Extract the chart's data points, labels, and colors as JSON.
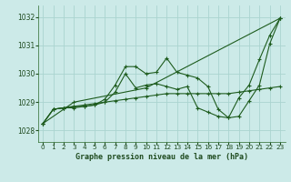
{
  "xlabel": "Graphe pression niveau de la mer (hPa)",
  "background_color": "#cceae8",
  "grid_color": "#aad4d0",
  "line_color": "#1e5c1e",
  "xlim": [
    -0.5,
    23.5
  ],
  "ylim": [
    1027.6,
    1032.4
  ],
  "yticks": [
    1028,
    1029,
    1030,
    1031,
    1032
  ],
  "xticks": [
    0,
    1,
    2,
    3,
    4,
    5,
    6,
    7,
    8,
    9,
    10,
    11,
    12,
    13,
    14,
    15,
    16,
    17,
    18,
    19,
    20,
    21,
    22,
    23
  ],
  "series": [
    {
      "x": [
        0,
        1,
        2,
        3,
        4,
        5,
        6,
        7,
        8,
        9,
        10,
        11,
        12,
        13,
        14,
        15,
        16,
        17,
        18,
        19,
        20,
        21,
        22,
        23
      ],
      "y": [
        1028.25,
        1028.75,
        1028.8,
        1028.8,
        1028.85,
        1028.9,
        1029.1,
        1029.6,
        1030.25,
        1030.25,
        1030.0,
        1030.05,
        1030.55,
        1030.05,
        1029.95,
        1029.85,
        1029.55,
        1028.75,
        1028.45,
        1029.15,
        1029.6,
        1030.5,
        1031.35,
        1031.95
      ]
    },
    {
      "x": [
        0,
        3,
        10,
        23
      ],
      "y": [
        1028.25,
        1029.0,
        1029.5,
        1031.95
      ]
    },
    {
      "x": [
        0,
        1,
        2,
        3,
        4,
        5,
        6,
        7,
        8,
        9,
        10,
        11,
        12,
        13,
        14,
        15,
        16,
        17,
        18,
        19,
        20,
        21,
        22,
        23
      ],
      "y": [
        1028.25,
        1028.75,
        1028.8,
        1028.85,
        1028.9,
        1028.95,
        1029.0,
        1029.05,
        1029.1,
        1029.15,
        1029.2,
        1029.25,
        1029.3,
        1029.3,
        1029.3,
        1029.3,
        1029.3,
        1029.3,
        1029.3,
        1029.35,
        1029.4,
        1029.45,
        1029.5,
        1029.55
      ]
    },
    {
      "x": [
        0,
        1,
        2,
        3,
        4,
        5,
        6,
        7,
        8,
        9,
        10,
        11,
        12,
        13,
        14,
        15,
        16,
        17,
        18,
        19,
        20,
        21,
        22,
        23
      ],
      "y": [
        1028.25,
        1028.75,
        1028.8,
        1028.85,
        1028.85,
        1028.9,
        1029.0,
        1029.35,
        1030.0,
        1029.5,
        1029.6,
        1029.65,
        1029.55,
        1029.45,
        1029.55,
        1028.8,
        1028.65,
        1028.5,
        1028.45,
        1028.5,
        1029.05,
        1029.6,
        1031.05,
        1031.95
      ]
    }
  ]
}
